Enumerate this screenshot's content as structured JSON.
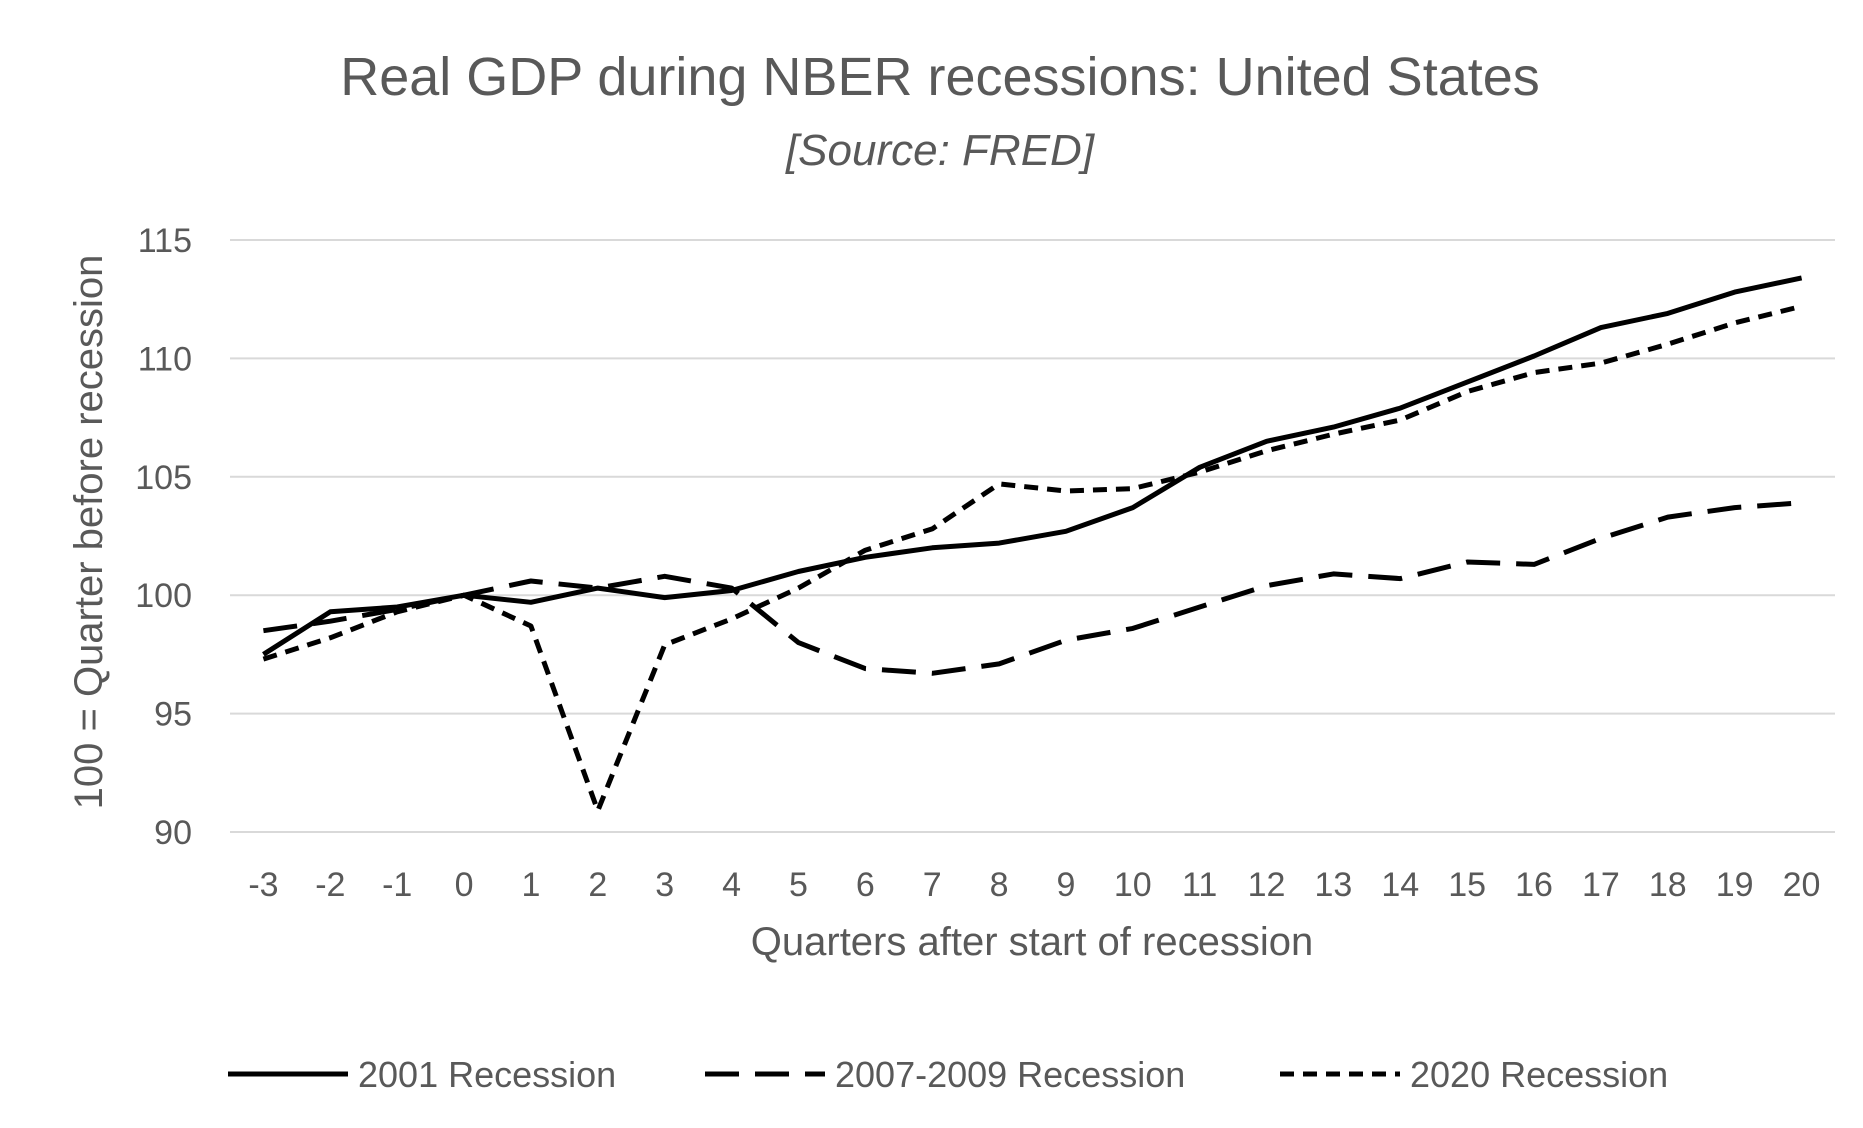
{
  "chart_data": {
    "type": "line",
    "title": "Real GDP during NBER recessions: United States",
    "subtitle": "[Source: FRED]",
    "xlabel": "Quarters after start of recession",
    "ylabel": "100 = Quarter before recession",
    "ylim": [
      90,
      115
    ],
    "yticks": [
      90,
      95,
      100,
      105,
      110,
      115
    ],
    "grid": true,
    "legend_position": "bottom",
    "x": [
      -3,
      -2,
      -1,
      0,
      1,
      2,
      3,
      4,
      5,
      6,
      7,
      8,
      9,
      10,
      11,
      12,
      13,
      14,
      15,
      16,
      17,
      18,
      19,
      20
    ],
    "series": [
      {
        "name": "2001 Recession",
        "dash": "solid",
        "values": [
          97.5,
          99.3,
          99.5,
          100.0,
          99.7,
          100.3,
          99.9,
          100.2,
          101.0,
          101.6,
          102.0,
          102.2,
          102.7,
          103.7,
          105.4,
          106.5,
          107.1,
          107.9,
          109.0,
          110.1,
          111.3,
          111.9,
          112.8,
          113.4
        ]
      },
      {
        "name": "2007-2009 Recession",
        "dash": "long-dash",
        "values": [
          98.5,
          98.9,
          99.4,
          100.0,
          100.6,
          100.3,
          100.8,
          100.3,
          98.0,
          96.9,
          96.7,
          97.1,
          98.1,
          98.6,
          99.5,
          100.4,
          100.9,
          100.7,
          101.4,
          101.3,
          102.4,
          103.3,
          103.7,
          103.9
        ]
      },
      {
        "name": "2020 Recession",
        "dash": "short-dash",
        "values": [
          97.3,
          98.2,
          99.3,
          100.0,
          98.7,
          90.9,
          97.9,
          99.0,
          100.3,
          101.9,
          102.8,
          104.7,
          104.4,
          104.5,
          105.2,
          106.1,
          106.8,
          107.4,
          108.6,
          109.4,
          109.8,
          110.6,
          111.5,
          112.2
        ]
      }
    ]
  }
}
